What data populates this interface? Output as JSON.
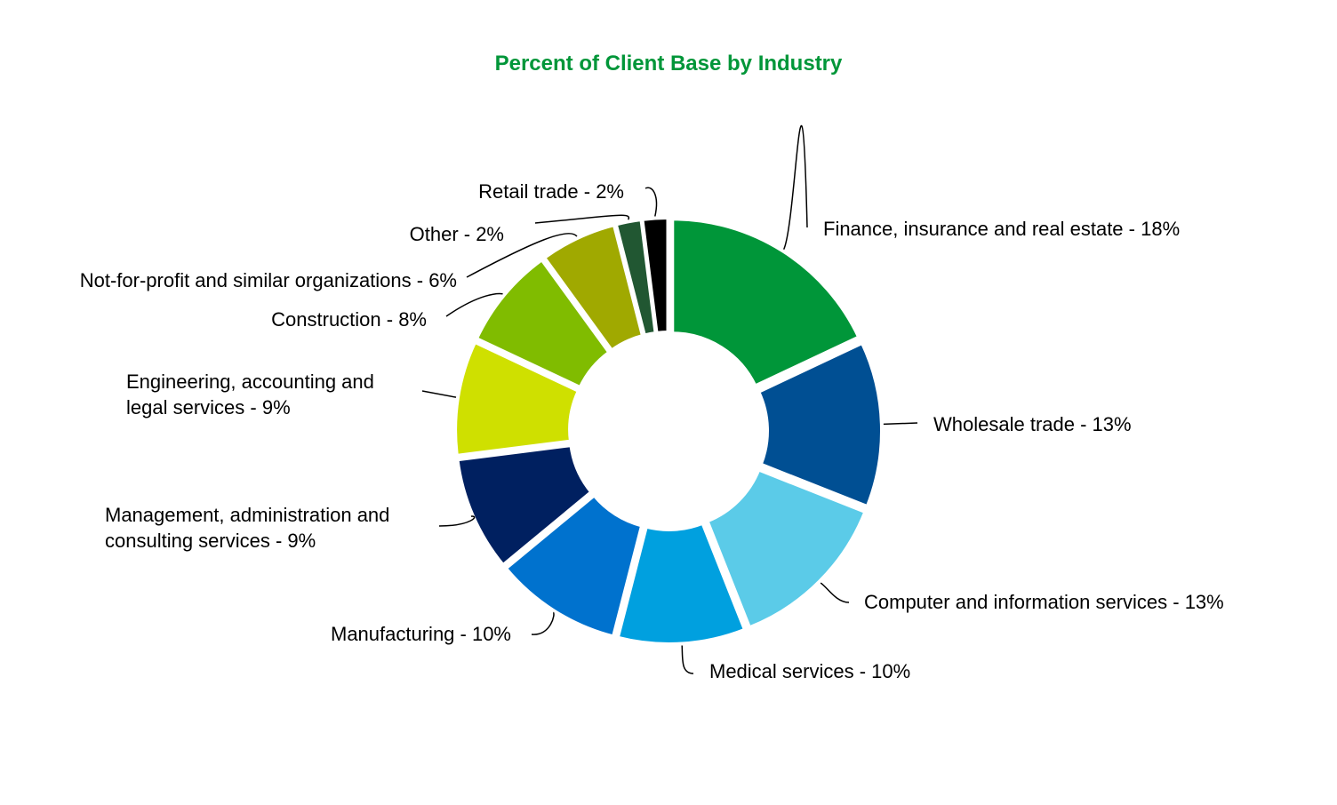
{
  "chart_data": {
    "type": "pie",
    "donut": true,
    "title": "Percent of Client Base by Industry",
    "title_color": "#009639",
    "slices": [
      {
        "label": "Finance, insurance and real estate - 18%",
        "value": 18,
        "color": "#009639"
      },
      {
        "label": "Wholesale trade - 13%",
        "value": 13,
        "color": "#004f93"
      },
      {
        "label": "Computer and information services - 13%",
        "value": 13,
        "color": "#5bcbe8"
      },
      {
        "label": "Medical services - 10%",
        "value": 10,
        "color": "#00a0df"
      },
      {
        "label": "Manufacturing - 10%",
        "value": 10,
        "color": "#0072ce"
      },
      {
        "label": "Management, administration and consulting services - 9%",
        "value": 9,
        "color": "#002060"
      },
      {
        "label": "Engineering, accounting and legal services - 9%",
        "value": 9,
        "color": "#cfe000"
      },
      {
        "label": "Construction - 8%",
        "value": 8,
        "color": "#80bc00"
      },
      {
        "label": "Not-for-profit and similar organizations - 6%",
        "value": 6,
        "color": "#a0a900"
      },
      {
        "label": "Other - 2%",
        "value": 2,
        "color": "#215732"
      },
      {
        "label": "Retail trade - 2%",
        "value": 2,
        "color": "#000000"
      }
    ]
  }
}
